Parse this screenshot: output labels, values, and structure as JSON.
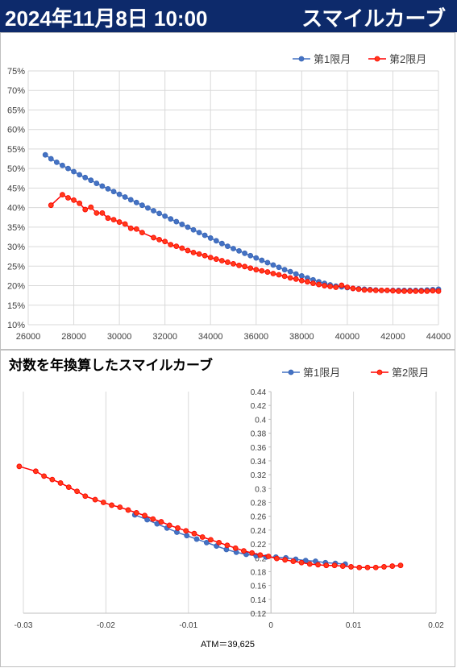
{
  "header": {
    "datetime": "2024年11月8日 10:00",
    "title": "スマイルカーブ"
  },
  "colors": {
    "series1": "#4472c4",
    "series1_edge": "#3a66b4",
    "series2": "#ff0000",
    "series2_fill": "#ff3b1a",
    "header_bg": "#0d2a6b"
  },
  "chart_data": [
    {
      "type": "line",
      "title": "",
      "xlim": [
        26000,
        44000
      ],
      "ylim": [
        0.1,
        0.75
      ],
      "x_ticks": [
        26000,
        28000,
        30000,
        32000,
        34000,
        36000,
        38000,
        40000,
        42000,
        44000
      ],
      "x_tick_labels": [
        "26000",
        "28000",
        "30000",
        "32000",
        "34000",
        "36000",
        "38000",
        "40000",
        "42000",
        "44000"
      ],
      "y_ticks": [
        0.1,
        0.15,
        0.2,
        0.25,
        0.3,
        0.35,
        0.4,
        0.45,
        0.5,
        0.55,
        0.6,
        0.65,
        0.7,
        0.75
      ],
      "y_tick_labels": [
        "10%",
        "15%",
        "20%",
        "25%",
        "30%",
        "35%",
        "40%",
        "45%",
        "50%",
        "55%",
        "60%",
        "65%",
        "70%",
        "75%"
      ],
      "grid": true,
      "legend": "top-right",
      "series": [
        {
          "name": "第1限月",
          "x": [
            26750,
            27000,
            27250,
            27500,
            27750,
            28000,
            28250,
            28500,
            28750,
            29000,
            29250,
            29500,
            29750,
            30000,
            30250,
            30500,
            30750,
            31000,
            31250,
            31500,
            31750,
            32000,
            32250,
            32500,
            32750,
            33000,
            33250,
            33500,
            33750,
            34000,
            34250,
            34500,
            34750,
            35000,
            35250,
            35500,
            35750,
            36000,
            36250,
            36500,
            36750,
            37000,
            37250,
            37500,
            37750,
            38000,
            38250,
            38500,
            38750,
            39000,
            39250,
            39500,
            39750,
            40000,
            40250,
            40500,
            40750,
            41000,
            41250,
            41500,
            41750,
            42000,
            42250,
            42500,
            42750,
            43000,
            43250,
            43500,
            43750,
            44000
          ],
          "y": [
            0.535,
            0.525,
            0.516,
            0.508,
            0.5,
            0.492,
            0.484,
            0.477,
            0.47,
            0.462,
            0.455,
            0.448,
            0.441,
            0.434,
            0.427,
            0.42,
            0.413,
            0.406,
            0.399,
            0.392,
            0.385,
            0.378,
            0.371,
            0.364,
            0.357,
            0.35,
            0.343,
            0.336,
            0.329,
            0.322,
            0.315,
            0.308,
            0.301,
            0.295,
            0.289,
            0.283,
            0.277,
            0.271,
            0.265,
            0.259,
            0.253,
            0.247,
            0.241,
            0.236,
            0.23,
            0.225,
            0.22,
            0.215,
            0.21,
            0.206,
            0.202,
            0.199,
            0.197,
            0.195,
            0.193,
            0.192,
            0.191,
            0.19,
            0.189,
            0.188,
            0.188,
            0.188,
            0.188,
            0.188,
            0.188,
            0.188,
            0.188,
            0.189,
            0.19,
            0.191
          ]
        },
        {
          "name": "第2限月",
          "x": [
            27000,
            27500,
            27750,
            28000,
            28250,
            28500,
            28750,
            29000,
            29250,
            29500,
            29750,
            30000,
            30250,
            30500,
            30750,
            31000,
            31500,
            31750,
            32000,
            32250,
            32500,
            32750,
            33000,
            33250,
            33500,
            33750,
            34000,
            34250,
            34500,
            34750,
            35000,
            35250,
            35500,
            35750,
            36000,
            36250,
            36500,
            36750,
            37000,
            37250,
            37500,
            37750,
            38000,
            38250,
            38500,
            38750,
            39000,
            39250,
            39500,
            39750,
            40000,
            40250,
            40500,
            40750,
            41000,
            41250,
            41500,
            41750,
            42000,
            42250,
            42500,
            42750,
            43000,
            43250,
            43500,
            43750,
            44000
          ],
          "y": [
            0.406,
            0.433,
            0.425,
            0.419,
            0.411,
            0.395,
            0.401,
            0.386,
            0.386,
            0.373,
            0.369,
            0.363,
            0.358,
            0.347,
            0.345,
            0.336,
            0.323,
            0.318,
            0.313,
            0.305,
            0.301,
            0.296,
            0.29,
            0.285,
            0.281,
            0.277,
            0.272,
            0.268,
            0.264,
            0.26,
            0.256,
            0.252,
            0.249,
            0.245,
            0.241,
            0.238,
            0.235,
            0.231,
            0.228,
            0.224,
            0.22,
            0.217,
            0.213,
            0.21,
            0.206,
            0.203,
            0.2,
            0.198,
            0.196,
            0.201,
            0.196,
            0.193,
            0.191,
            0.189,
            0.189,
            0.188,
            0.188,
            0.188,
            0.187,
            0.186,
            0.186,
            0.186,
            0.186,
            0.186,
            0.186,
            0.187,
            0.186
          ]
        }
      ]
    },
    {
      "type": "line",
      "title": "対数を年換算したスマイルカーブ",
      "xlim": [
        -0.03,
        0.02
      ],
      "ylim": [
        0.12,
        0.44
      ],
      "x_ticks": [
        -0.03,
        -0.02,
        -0.01,
        0,
        0.01,
        0.02
      ],
      "x_tick_labels": [
        "-0.03",
        "-0.02",
        "-0.01",
        "0",
        "0.01",
        "0.02"
      ],
      "y_ticks": [
        0.12,
        0.14,
        0.16,
        0.18,
        0.2,
        0.22,
        0.24,
        0.26,
        0.28,
        0.3,
        0.32,
        0.34,
        0.36,
        0.38,
        0.4,
        0.42,
        0.44
      ],
      "y_tick_labels": [
        "0.12",
        "0.14",
        "0.16",
        "0.18",
        "0.2",
        "0.22",
        "0.24",
        "0.26",
        "0.28",
        "0.3",
        "0.32",
        "0.34",
        "0.36",
        "0.38",
        "0.4",
        "0.42",
        "0.44"
      ],
      "grid": true,
      "legend": "top-right",
      "atm_label": "ATM＝39,625",
      "series": [
        {
          "name": "第1限月",
          "x": [
            -0.0165,
            -0.015,
            -0.0138,
            -0.0126,
            -0.0114,
            -0.0102,
            -0.009,
            -0.0078,
            -0.0066,
            -0.0054,
            -0.0042,
            -0.003,
            -0.0018,
            -0.0006,
            0.0006,
            0.0018,
            0.003,
            0.0042,
            0.0054,
            0.0066,
            0.0078,
            0.009
          ],
          "y": [
            0.262,
            0.255,
            0.249,
            0.243,
            0.237,
            0.232,
            0.227,
            0.222,
            0.217,
            0.212,
            0.208,
            0.205,
            0.203,
            0.201,
            0.201,
            0.2,
            0.198,
            0.196,
            0.195,
            0.193,
            0.192,
            0.191
          ]
        },
        {
          "name": "第2限月",
          "x": [
            -0.0305,
            -0.0285,
            -0.0275,
            -0.0265,
            -0.0255,
            -0.0245,
            -0.0235,
            -0.0225,
            -0.0213,
            -0.0203,
            -0.0193,
            -0.0183,
            -0.0173,
            -0.0163,
            -0.0153,
            -0.0143,
            -0.0133,
            -0.0123,
            -0.0113,
            -0.0103,
            -0.0093,
            -0.0083,
            -0.0073,
            -0.0063,
            -0.0053,
            -0.0043,
            -0.0033,
            -0.0023,
            -0.0013,
            -0.0003,
            0.0007,
            0.0017,
            0.0027,
            0.0037,
            0.0047,
            0.0057,
            0.0067,
            0.0077,
            0.0087,
            0.0097,
            0.0107,
            0.0117,
            0.0127,
            0.0137,
            0.0147,
            0.0157
          ],
          "y": [
            0.332,
            0.325,
            0.318,
            0.313,
            0.308,
            0.302,
            0.296,
            0.289,
            0.284,
            0.28,
            0.276,
            0.273,
            0.269,
            0.265,
            0.261,
            0.256,
            0.252,
            0.247,
            0.243,
            0.239,
            0.235,
            0.23,
            0.226,
            0.222,
            0.218,
            0.214,
            0.21,
            0.207,
            0.204,
            0.202,
            0.199,
            0.197,
            0.195,
            0.193,
            0.191,
            0.19,
            0.189,
            0.189,
            0.188,
            0.187,
            0.186,
            0.186,
            0.186,
            0.187,
            0.188,
            0.189
          ]
        }
      ]
    }
  ]
}
